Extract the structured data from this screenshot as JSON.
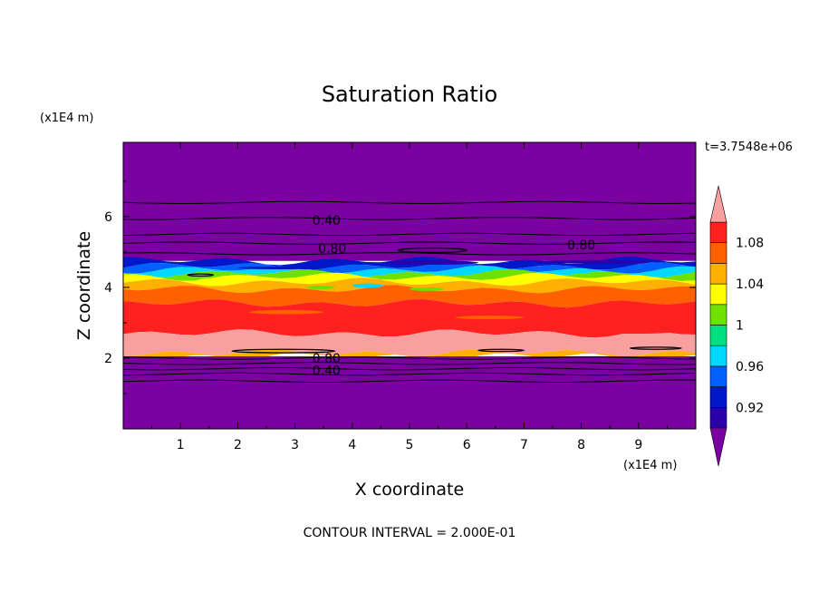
{
  "chart_data": {
    "type": "heatmap",
    "title": "Saturation Ratio",
    "xlabel": "X coordinate",
    "ylabel": "Z coordinate",
    "x_unit_label": "(x1E4 m)",
    "y_unit_label": "(x1E4 m)",
    "time_label": "t=3.7548e+06",
    "footer": "CONTOUR INTERVAL = 2.000E-01",
    "xlim": [
      0,
      10
    ],
    "ylim": [
      0,
      8.1
    ],
    "x_ticks": [
      "1",
      "2",
      "3",
      "4",
      "5",
      "6",
      "7",
      "8",
      "9"
    ],
    "y_ticks": [
      "2",
      "4",
      "6"
    ],
    "colorbar": {
      "labels": [
        "0.92",
        "0.96",
        "1",
        "1.04",
        "1.08"
      ],
      "levels": [
        0.9,
        0.92,
        0.94,
        0.96,
        0.98,
        1.0,
        1.02,
        1.04,
        1.06,
        1.08,
        1.1
      ],
      "colors": [
        "#7a00a0",
        "#2a00a8",
        "#0018c8",
        "#0060ff",
        "#00d8ff",
        "#00e080",
        "#70e000",
        "#ffff00",
        "#ffb000",
        "#ff6000",
        "#ff2020",
        "#f8a0a0"
      ]
    },
    "bands": [
      {
        "z": [
          0,
          2.05
        ],
        "color": "#7a00a0"
      },
      {
        "z": [
          2.05,
          2.15
        ],
        "color": "#ffb000"
      },
      {
        "z": [
          2.15,
          2.7
        ],
        "color": "#f8a0a0"
      },
      {
        "z": [
          2.7,
          3.55
        ],
        "color": "#ff2020"
      },
      {
        "z": [
          3.55,
          3.95
        ],
        "color": "#ff6000"
      },
      {
        "z": [
          3.95,
          4.15
        ],
        "color": "#ffb000"
      },
      {
        "z": [
          4.15,
          4.3
        ],
        "color": "#ffff00"
      },
      {
        "z": [
          4.3,
          4.4
        ],
        "color": "#70e000"
      },
      {
        "z": [
          4.4,
          4.5
        ],
        "color": "#00d8ff"
      },
      {
        "z": [
          4.5,
          4.6
        ],
        "color": "#0060ff"
      },
      {
        "z": [
          4.6,
          4.75
        ],
        "color": "#0018c8"
      },
      {
        "z": [
          4.75,
          8.1
        ],
        "color": "#7a00a0"
      }
    ],
    "contours": [
      {
        "z": 6.4
      },
      {
        "z": 5.95
      },
      {
        "z": 5.5
      },
      {
        "z": 5.25
      },
      {
        "z": 4.95
      },
      {
        "z": 2.0
      },
      {
        "z": 1.85
      },
      {
        "z": 1.7
      },
      {
        "z": 1.55
      },
      {
        "z": 1.35
      }
    ],
    "contour_labels": [
      {
        "text": "0.40",
        "x": 3.55,
        "z": 5.9
      },
      {
        "text": "0.80",
        "x": 3.65,
        "z": 5.1
      },
      {
        "text": "0.80",
        "x": 8.0,
        "z": 5.2
      },
      {
        "text": "0.80",
        "x": 3.55,
        "z": 2.0
      },
      {
        "text": "0.40",
        "x": 3.55,
        "z": 1.65
      }
    ]
  }
}
